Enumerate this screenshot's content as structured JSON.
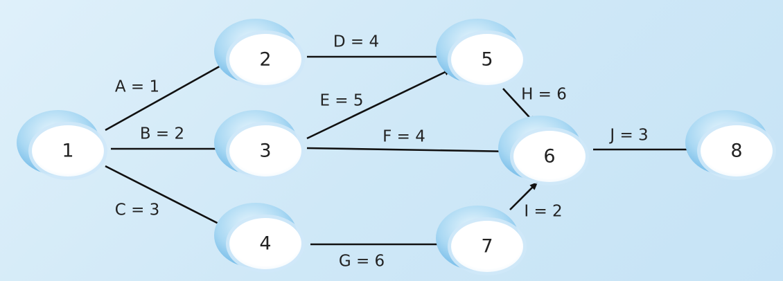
{
  "diagram": {
    "nodes": [
      {
        "id": "1",
        "label": "1"
      },
      {
        "id": "2",
        "label": "2"
      },
      {
        "id": "3",
        "label": "3"
      },
      {
        "id": "4",
        "label": "4"
      },
      {
        "id": "5",
        "label": "5"
      },
      {
        "id": "6",
        "label": "6"
      },
      {
        "id": "7",
        "label": "7"
      },
      {
        "id": "8",
        "label": "8"
      }
    ],
    "edges": [
      {
        "from": "1",
        "to": "2",
        "label": "A = 1"
      },
      {
        "from": "1",
        "to": "3",
        "label": "B = 2"
      },
      {
        "from": "1",
        "to": "4",
        "label": "C = 3"
      },
      {
        "from": "2",
        "to": "5",
        "label": "D = 4"
      },
      {
        "from": "3",
        "to": "5",
        "label": "E = 5"
      },
      {
        "from": "3",
        "to": "6",
        "label": "F = 4"
      },
      {
        "from": "4",
        "to": "7",
        "label": "G = 6"
      },
      {
        "from": "5",
        "to": "6",
        "label": "H = 6"
      },
      {
        "from": "7",
        "to": "6",
        "label": "I = 2"
      },
      {
        "from": "6",
        "to": "8",
        "label": "J = 3"
      }
    ],
    "colors": {
      "background": "#d6ecf8",
      "node_shadow": "#7fc1ea",
      "node_face": "#ffffff",
      "edge": "#111111"
    }
  }
}
